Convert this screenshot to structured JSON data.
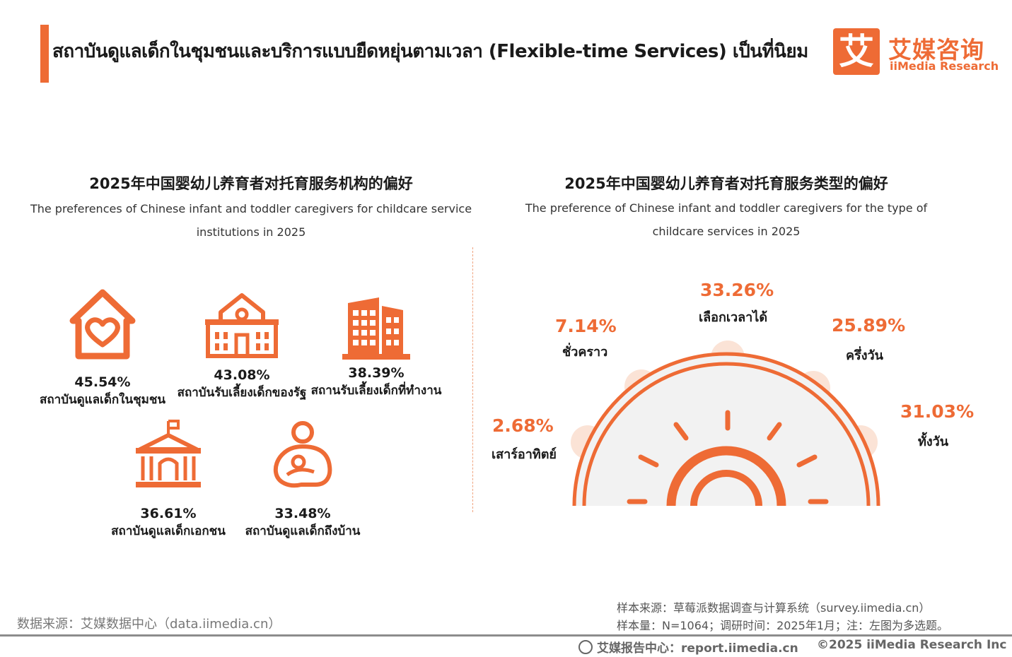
{
  "header": {
    "title": "สถาบันดูแลเด็กในชุมชนและบริการแบบยืดหยุ่นตามเวลา (Flexible-time Services) เป็นที่นิยม",
    "logo_glyph": "艾",
    "logo_cn": "艾媒咨询",
    "logo_en": "iiMedia Research"
  },
  "colors": {
    "accent": "#ee6b35",
    "sun_bg": "#f2f2f2",
    "bump": "#fbe3d6"
  },
  "chart_data": [
    {
      "type": "table",
      "title": "2025年中国婴幼儿养育者对托育服务机构的偏好",
      "subtitle": "The preferences of Chinese infant and toddler caregivers for childcare service institutions in 2025",
      "items": [
        {
          "icon": "house-heart-icon",
          "value": "45.54%",
          "label": "สถาบันดูแลเด็กในชุมชน"
        },
        {
          "icon": "school-building-icon",
          "value": "43.08%",
          "label": "สถาบันรับเลี้ยงเด็กของรัฐ"
        },
        {
          "icon": "office-building-icon",
          "value": "38.39%",
          "label": "สถานรับเลี้ยงเด็กที่ทำงาน"
        },
        {
          "icon": "flag-building-icon",
          "value": "36.61%",
          "label": "สถาบันดูแลเด็กเอกชน"
        },
        {
          "icon": "mother-child-icon",
          "value": "33.48%",
          "label": "สถาบันดูแลเด็กถึงบ้าน"
        }
      ]
    },
    {
      "type": "table",
      "title": "2025年中国婴幼儿养育者对托育服务类型的偏好",
      "subtitle": "The preference of Chinese infant and toddler caregivers for the type of childcare services in 2025",
      "items": [
        {
          "value": "2.68%",
          "label": "เสาร์อาทิตย์"
        },
        {
          "value": "7.14%",
          "label": "ชั่วคราว"
        },
        {
          "value": "33.26%",
          "label": "เลือกเวลาได้"
        },
        {
          "value": "25.89%",
          "label": "ครึ่งวัน"
        },
        {
          "value": "31.03%",
          "label": "ทั้งวัน"
        }
      ]
    }
  ],
  "footer": {
    "source": "数据来源：艾媒数据中心（data.iimedia.cn）",
    "sample_source": "样本来源：草莓派数据调查与计算系统（survey.iimedia.cn）",
    "sample_size": "样本量：N=1064；调研时间：2025年1月；注：左图为多选题。",
    "report": "艾媒报告中心：report.iimedia.cn",
    "copyright": "©2025  iiMedia Research  Inc"
  }
}
